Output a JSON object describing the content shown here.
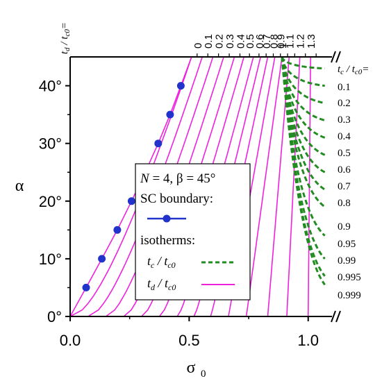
{
  "chart_data": {
    "type": "line",
    "title": "",
    "xlabel": "σ",
    "xlabel_sub": "0",
    "ylabel": "α",
    "xlim": [
      0.0,
      1.1
    ],
    "ylim": [
      0,
      45
    ],
    "x_ticks": [
      "0.0",
      "0.5",
      "1.0"
    ],
    "x_tick_values": [
      0.0,
      0.5,
      1.0
    ],
    "y_ticks": [
      "0°",
      "10°",
      "20°",
      "30°",
      "40°"
    ],
    "y_tick_values": [
      0,
      10,
      20,
      30,
      40
    ],
    "top_axis_label": "t_d / t_c0 =",
    "top_ticks": [
      "0",
      "0.1",
      "0.2",
      "0.3",
      "0.4",
      "0.5",
      "0.6",
      "0.7",
      "0.8",
      "0.9",
      "1",
      "1.1",
      "1.2",
      "1.3"
    ],
    "right_axis_label": "t_c / t_c0 =",
    "right_ticks": [
      "0.1",
      "0.2",
      "0.3",
      "0.4",
      "0.5",
      "0.6",
      "0.7",
      "0.8",
      "0.9",
      "0.95",
      "0.99",
      "0.995",
      "0.999"
    ],
    "legend": {
      "line1": "N = 4, β = 45°",
      "sc_label": "SC boundary:",
      "iso_label": "isotherms:",
      "tc_label": "t_c / t_c0",
      "td_label": "t_d / t_c0"
    },
    "colors": {
      "sc_boundary": "#2233cc",
      "tc_isotherm": "#228b22",
      "td_isotherm": "#ee22dd"
    },
    "series": [
      {
        "name": "SC boundary",
        "x": [
          0.0,
          0.067,
          0.133,
          0.198,
          0.258,
          0.315,
          0.37,
          0.42,
          0.465,
          0.51
        ],
        "y": [
          0,
          5,
          10,
          15,
          20,
          25,
          30,
          35,
          40,
          45
        ]
      }
    ],
    "td_isotherms": {
      "t_d": [
        0,
        0.1,
        0.2,
        0.3,
        0.4,
        0.5,
        0.6,
        0.7,
        0.8,
        0.9,
        1,
        1.1,
        1.2,
        1.3
      ],
      "x_at_top": [
        0.51,
        0.555,
        0.6,
        0.645,
        0.69,
        0.73,
        0.77,
        0.8,
        0.83,
        0.86,
        0.89,
        0.92,
        0.965,
        1.01
      ],
      "x_at_bottom": [
        0.0,
        0.075,
        0.15,
        0.225,
        0.3,
        0.375,
        0.45,
        0.52,
        0.59,
        0.665,
        0.74,
        0.83,
        0.91,
        1.0
      ]
    },
    "tc_isotherms": {
      "t_c": [
        0.1,
        0.2,
        0.3,
        0.4,
        0.5,
        0.6,
        0.7,
        0.8,
        0.9,
        0.95,
        0.99,
        0.995,
        0.999
      ],
      "alpha_at_right": [
        43,
        40,
        37,
        34,
        31,
        28,
        25,
        22,
        19,
        14,
        10,
        7,
        5.5
      ]
    }
  }
}
